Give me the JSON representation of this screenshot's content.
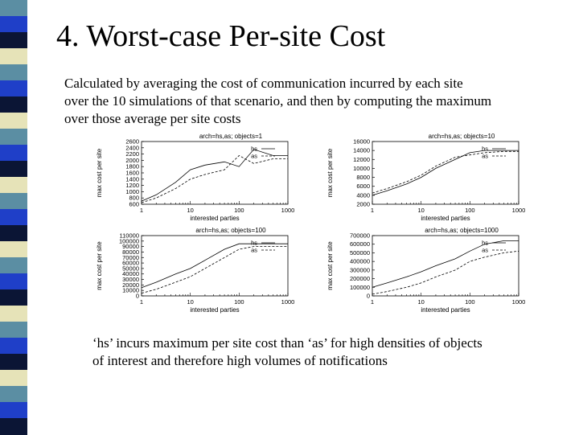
{
  "slide": {
    "title": "4. Worst-case Per-site Cost",
    "description_lines": [
      "Calculated by averaging the cost of communication incurred by each site",
      "over the 10 simulations of that scenario, and then by computing the maximum",
      "over those average per site costs"
    ],
    "note_lines": [
      "‘hs’ incurs maximum per site cost than ‘as’ for high densities of objects",
      "of interest and therefore high volumes of notifications"
    ],
    "stripe_colors": [
      "#5b8ea3",
      "#1f3fc8",
      "#0b1535",
      "#e6e3b8",
      "#5b8ea3",
      "#1f3fc8",
      "#0b1535",
      "#e6e3b8",
      "#5b8ea3",
      "#1f3fc8",
      "#0b1535",
      "#e6e3b8",
      "#5b8ea3",
      "#1f3fc8",
      "#0b1535",
      "#e6e3b8",
      "#5b8ea3",
      "#1f3fc8",
      "#0b1535",
      "#e6e3b8",
      "#5b8ea3",
      "#1f3fc8",
      "#0b1535",
      "#e6e3b8",
      "#5b8ea3",
      "#1f3fc8",
      "#0b1535"
    ]
  },
  "chart_data": [
    {
      "type": "line",
      "title": "arch=hs,as; objects=1",
      "xlabel": "interested parties",
      "ylabel": "max cost per site",
      "xscale": "log",
      "xlim": [
        1,
        1000
      ],
      "ylim": [
        600,
        2600
      ],
      "xticks": [
        "1",
        "10",
        "100",
        "1000"
      ],
      "yticks": [
        600,
        800,
        1000,
        1200,
        1400,
        1600,
        1800,
        2000,
        2200,
        2400,
        2600
      ],
      "legend_position": "top-right",
      "x": [
        1,
        2,
        5,
        10,
        20,
        50,
        100,
        200,
        500,
        1000
      ],
      "series": [
        {
          "name": "hs",
          "dash": "solid",
          "values": [
            700,
            900,
            1300,
            1700,
            1850,
            1950,
            1800,
            2350,
            2150,
            2150
          ]
        },
        {
          "name": "as",
          "dash": "dashed",
          "values": [
            650,
            800,
            1100,
            1400,
            1550,
            1700,
            2150,
            1900,
            2050,
            2050
          ]
        }
      ]
    },
    {
      "type": "line",
      "title": "arch=hs,as; objects=10",
      "xlabel": "interested parties",
      "ylabel": "max cost per site",
      "xscale": "log",
      "xlim": [
        1,
        1000
      ],
      "ylim": [
        2000,
        16000
      ],
      "xticks": [
        "1",
        "10",
        "100",
        "1000"
      ],
      "yticks": [
        2000,
        4000,
        6000,
        8000,
        10000,
        12000,
        14000,
        16000
      ],
      "legend_position": "top-right",
      "x": [
        1,
        2,
        5,
        10,
        20,
        50,
        100,
        200,
        500,
        1000
      ],
      "series": [
        {
          "name": "hs",
          "dash": "solid",
          "values": [
            4000,
            5000,
            6500,
            8000,
            10000,
            12000,
            13500,
            14000,
            14000,
            14000
          ]
        },
        {
          "name": "as",
          "dash": "dashed",
          "values": [
            4500,
            5500,
            7000,
            8500,
            10500,
            12500,
            13000,
            13500,
            13800,
            13800
          ]
        }
      ]
    },
    {
      "type": "line",
      "title": "arch=hs,as; objects=100",
      "xlabel": "interested parties",
      "ylabel": "max cost per site",
      "xscale": "log",
      "xlim": [
        1,
        1000
      ],
      "ylim": [
        0,
        110000
      ],
      "xticks": [
        "1",
        "10",
        "100",
        "1000"
      ],
      "yticks": [
        0,
        10000,
        20000,
        30000,
        40000,
        50000,
        60000,
        70000,
        80000,
        90000,
        100000,
        110000
      ],
      "legend_position": "top-right",
      "x": [
        1,
        2,
        5,
        10,
        20,
        50,
        100,
        200,
        500,
        1000
      ],
      "series": [
        {
          "name": "hs",
          "dash": "solid",
          "values": [
            15000,
            25000,
            40000,
            50000,
            65000,
            85000,
            95000,
            95000,
            95000,
            95000
          ]
        },
        {
          "name": "as",
          "dash": "dashed",
          "values": [
            5000,
            12000,
            25000,
            35000,
            50000,
            70000,
            85000,
            90000,
            90000,
            90000
          ]
        }
      ]
    },
    {
      "type": "line",
      "title": "arch=hs,as; objects=1000",
      "xlabel": "interested parties",
      "ylabel": "max cost per site",
      "xscale": "log",
      "xlim": [
        1,
        1000
      ],
      "ylim": [
        0,
        700000
      ],
      "xticks": [
        "1",
        "10",
        "100",
        "1000"
      ],
      "yticks": [
        0,
        100000,
        200000,
        300000,
        400000,
        500000,
        600000,
        700000
      ],
      "legend_position": "top-right",
      "x": [
        1,
        2,
        5,
        10,
        20,
        50,
        100,
        200,
        500,
        1000
      ],
      "series": [
        {
          "name": "hs",
          "dash": "solid",
          "values": [
            100000,
            150000,
            220000,
            280000,
            350000,
            430000,
            520000,
            600000,
            640000,
            640000
          ]
        },
        {
          "name": "as",
          "dash": "dashed",
          "values": [
            20000,
            50000,
            100000,
            150000,
            220000,
            300000,
            400000,
            450000,
            500000,
            520000
          ]
        }
      ]
    }
  ]
}
